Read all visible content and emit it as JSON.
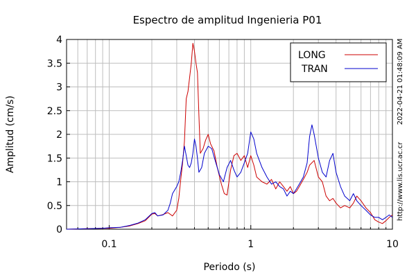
{
  "chart_data": {
    "type": "line",
    "title": "Espectro de amplitud Ingenieria P01",
    "xlabel": "Periodo (s)",
    "ylabel": "Amplitud (cm/s)",
    "x_scale": "log",
    "xlim": [
      0.05,
      10
    ],
    "ylim": [
      0,
      4
    ],
    "x_ticks": [
      {
        "value": 0.1,
        "label": "0.1"
      },
      {
        "value": 1,
        "label": "1"
      },
      {
        "value": 10,
        "label": "10"
      }
    ],
    "y_ticks": [
      {
        "value": 0,
        "label": "0"
      },
      {
        "value": 0.5,
        "label": "0.5"
      },
      {
        "value": 1,
        "label": "1"
      },
      {
        "value": 1.5,
        "label": "1.5"
      },
      {
        "value": 2,
        "label": "2"
      },
      {
        "value": 2.5,
        "label": "2.5"
      },
      {
        "value": 3,
        "label": "3"
      },
      {
        "value": 3.5,
        "label": "3.5"
      },
      {
        "value": 4,
        "label": "4"
      }
    ],
    "grid": true,
    "legend_position": "top-right",
    "series": [
      {
        "name": "LONG",
        "color": "#cc0000",
        "x": [
          0.05,
          0.07,
          0.09,
          0.1,
          0.12,
          0.14,
          0.16,
          0.18,
          0.2,
          0.21,
          0.22,
          0.24,
          0.26,
          0.28,
          0.3,
          0.31,
          0.32,
          0.33,
          0.34,
          0.35,
          0.36,
          0.37,
          0.38,
          0.39,
          0.4,
          0.41,
          0.42,
          0.43,
          0.44,
          0.46,
          0.48,
          0.5,
          0.52,
          0.55,
          0.58,
          0.62,
          0.65,
          0.68,
          0.72,
          0.76,
          0.8,
          0.85,
          0.9,
          0.95,
          1.0,
          1.05,
          1.1,
          1.2,
          1.3,
          1.4,
          1.5,
          1.6,
          1.7,
          1.8,
          1.9,
          2.0,
          2.1,
          2.2,
          2.35,
          2.5,
          2.6,
          2.8,
          3.0,
          3.2,
          3.4,
          3.6,
          3.8,
          4.0,
          4.3,
          4.6,
          5.0,
          5.3,
          5.6,
          6.0,
          6.5,
          7.0,
          7.5,
          8.0,
          8.5,
          9.0,
          9.5,
          10.0
        ],
        "y": [
          0.0,
          0.01,
          0.02,
          0.02,
          0.04,
          0.07,
          0.12,
          0.18,
          0.32,
          0.33,
          0.28,
          0.31,
          0.35,
          0.28,
          0.4,
          0.65,
          1.05,
          1.4,
          1.85,
          2.75,
          2.9,
          3.2,
          3.5,
          3.92,
          3.75,
          3.5,
          3.3,
          2.4,
          1.6,
          1.7,
          1.88,
          2.0,
          1.8,
          1.65,
          1.3,
          0.95,
          0.75,
          0.72,
          1.25,
          1.55,
          1.6,
          1.45,
          1.55,
          1.3,
          1.55,
          1.35,
          1.1,
          1.0,
          0.95,
          1.05,
          0.85,
          1.0,
          0.9,
          0.8,
          0.9,
          0.75,
          0.8,
          0.9,
          1.05,
          1.2,
          1.35,
          1.45,
          1.1,
          1.0,
          0.7,
          0.6,
          0.65,
          0.55,
          0.45,
          0.5,
          0.45,
          0.55,
          0.7,
          0.6,
          0.45,
          0.35,
          0.2,
          0.15,
          0.12,
          0.18,
          0.25,
          0.3
        ]
      },
      {
        "name": "TRAN",
        "color": "#0000cc",
        "x": [
          0.05,
          0.07,
          0.09,
          0.1,
          0.12,
          0.14,
          0.16,
          0.18,
          0.2,
          0.21,
          0.22,
          0.24,
          0.26,
          0.27,
          0.28,
          0.3,
          0.31,
          0.32,
          0.33,
          0.34,
          0.35,
          0.36,
          0.37,
          0.38,
          0.39,
          0.4,
          0.41,
          0.42,
          0.43,
          0.45,
          0.47,
          0.5,
          0.53,
          0.56,
          0.6,
          0.64,
          0.68,
          0.72,
          0.76,
          0.8,
          0.85,
          0.9,
          0.95,
          1.0,
          1.05,
          1.1,
          1.2,
          1.3,
          1.4,
          1.5,
          1.6,
          1.7,
          1.8,
          1.9,
          2.0,
          2.1,
          2.2,
          2.35,
          2.5,
          2.6,
          2.7,
          2.8,
          3.0,
          3.2,
          3.4,
          3.6,
          3.8,
          4.0,
          4.3,
          4.6,
          5.0,
          5.3,
          5.6,
          6.0,
          6.5,
          7.0,
          7.5,
          8.0,
          8.5,
          9.0,
          9.5,
          10.0
        ],
        "y": [
          0.0,
          0.01,
          0.02,
          0.03,
          0.04,
          0.08,
          0.13,
          0.2,
          0.33,
          0.35,
          0.28,
          0.3,
          0.4,
          0.55,
          0.75,
          0.9,
          1.0,
          1.2,
          1.45,
          1.75,
          1.55,
          1.35,
          1.3,
          1.4,
          1.6,
          1.9,
          1.75,
          1.5,
          1.2,
          1.3,
          1.6,
          1.75,
          1.7,
          1.45,
          1.15,
          1.0,
          1.3,
          1.45,
          1.25,
          1.1,
          1.2,
          1.4,
          1.6,
          2.05,
          1.9,
          1.6,
          1.3,
          1.1,
          0.95,
          1.0,
          0.9,
          0.85,
          0.7,
          0.8,
          0.75,
          0.85,
          0.95,
          1.1,
          1.4,
          1.95,
          2.2,
          2.0,
          1.5,
          1.2,
          1.1,
          1.45,
          1.6,
          1.2,
          0.9,
          0.7,
          0.6,
          0.75,
          0.6,
          0.5,
          0.4,
          0.3,
          0.25,
          0.25,
          0.2,
          0.25,
          0.3,
          0.25
        ]
      }
    ],
    "side_annotations": {
      "timestamp": "2022-04-21 01:48:09 AM",
      "url": "http://www.lis.ucr.ac.cr"
    }
  }
}
